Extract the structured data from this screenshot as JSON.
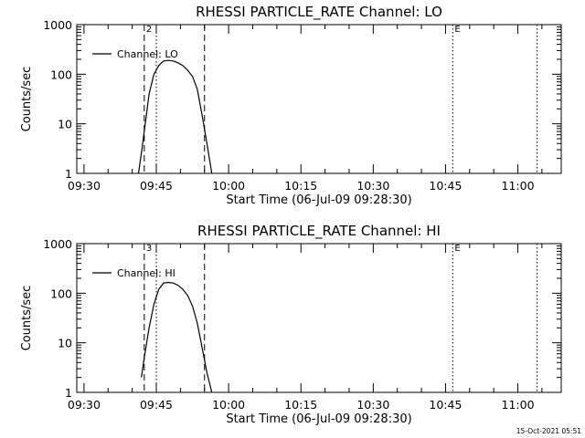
{
  "chart_data": [
    {
      "type": "line",
      "title": "RHESSI PARTICLE_RATE Channel: LO",
      "xlabel": "Start Time (06-Jul-09 09:28:30)",
      "ylabel": "Counts/sec",
      "y_scale": "log",
      "ylim": [
        1,
        1000
      ],
      "yticks": [
        "1",
        "10",
        "100",
        "1000"
      ],
      "xticks": [
        "09:30",
        "09:45",
        "10:00",
        "10:15",
        "10:30",
        "10:45",
        "11:00"
      ],
      "xlim_minutes": [
        0,
        100.5
      ],
      "legend": {
        "position": "top-left",
        "label": "Channel: LO"
      },
      "markers": [
        {
          "label": "2",
          "minute": 14.0,
          "style": "dashed"
        },
        {
          "label": "",
          "minute": 16.5,
          "style": "dotted"
        },
        {
          "label": "",
          "minute": 26.5,
          "style": "dashed"
        },
        {
          "label": "E",
          "minute": 78.0,
          "style": "dotted"
        },
        {
          "label": "",
          "minute": 95.5,
          "style": "dotted"
        }
      ],
      "series": [
        {
          "name": "Channel: LO",
          "x": [
            12.8,
            13.5,
            14.2,
            15,
            16,
            17,
            18,
            19,
            20,
            21,
            22,
            23,
            24,
            25,
            26,
            27,
            28
          ],
          "y": [
            1,
            3,
            10,
            40,
            100,
            150,
            185,
            190,
            185,
            170,
            150,
            120,
            90,
            50,
            15,
            4,
            1
          ]
        }
      ]
    },
    {
      "type": "line",
      "title": "RHESSI PARTICLE_RATE Channel: HI",
      "xlabel": "Start Time (06-Jul-09 09:28:30)",
      "ylabel": "Counts/sec",
      "y_scale": "log",
      "ylim": [
        1,
        1000
      ],
      "yticks": [
        "1",
        "10",
        "100",
        "1000"
      ],
      "xticks": [
        "09:30",
        "09:45",
        "10:00",
        "10:15",
        "10:30",
        "10:45",
        "11:00"
      ],
      "xlim_minutes": [
        0,
        100.5
      ],
      "legend": {
        "position": "top-left",
        "label": "Channel: HI"
      },
      "markers": [
        {
          "label": "3",
          "minute": 14.0,
          "style": "dashed"
        },
        {
          "label": "",
          "minute": 16.5,
          "style": "dotted"
        },
        {
          "label": "",
          "minute": 26.5,
          "style": "dashed"
        },
        {
          "label": "E",
          "minute": 78.0,
          "style": "dotted"
        },
        {
          "label": "",
          "minute": 95.5,
          "style": "dotted"
        }
      ],
      "series": [
        {
          "name": "Channel: HI",
          "x": [
            13.4,
            14,
            15,
            16,
            17,
            18,
            19,
            20,
            21,
            22,
            23,
            24,
            25,
            26,
            27,
            28
          ],
          "y": [
            2,
            5,
            20,
            60,
            120,
            160,
            165,
            160,
            145,
            120,
            90,
            55,
            25,
            8,
            2.5,
            1
          ]
        }
      ]
    }
  ],
  "footer": {
    "timestamp": "15-Oct-2021 05:51"
  }
}
